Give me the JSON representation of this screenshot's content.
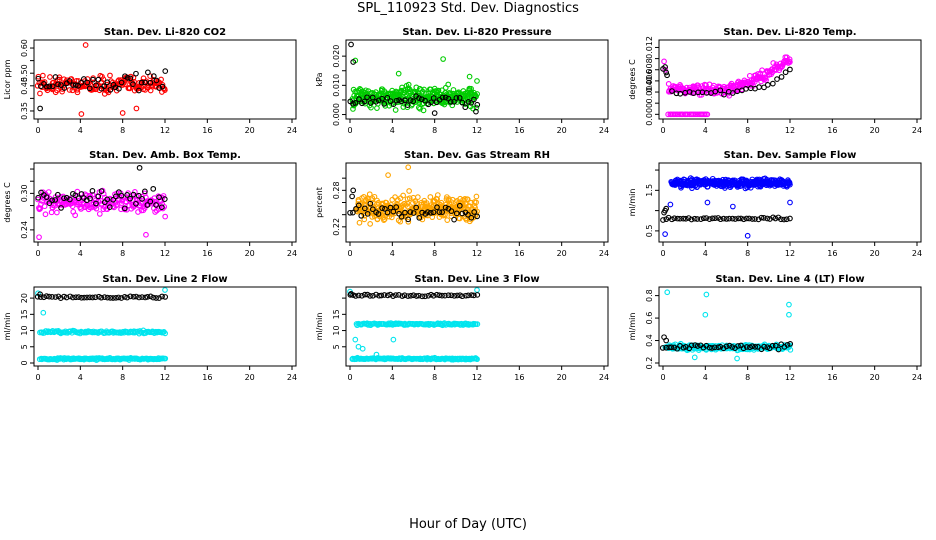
{
  "figure": {
    "title": "SPL_110923  Std. Dev. Diagnostics",
    "xlabel": "Hour of Day (UTC)"
  },
  "colors": {
    "red": "#ff0000",
    "black": "#000000",
    "green": "#00cc00",
    "magenta": "#ff00ff",
    "orange": "#ffa500",
    "blue": "#0000ff",
    "cyan": "#00e5ee"
  },
  "chart_data": [
    {
      "type": "scatter",
      "title": "Stan. Dev. Li-820 CO2",
      "ylabel": "Licor ppm",
      "xlim": [
        0,
        24
      ],
      "xticks": [
        0,
        4,
        8,
        12,
        16,
        20,
        24
      ],
      "ylim": [
        0.33,
        0.62
      ],
      "yticks": [
        0.35,
        0.4,
        0.45,
        0.5,
        0.55,
        0.6
      ],
      "ytick_labels": [
        "0.35",
        "",
        "0.45",
        "0.50",
        "",
        "0.60"
      ],
      "series": [
        {
          "name": "red",
          "color": "red",
          "x_range": [
            0,
            12
          ],
          "n": 170,
          "center": 0.455,
          "spread": 0.045,
          "outliers": [
            [
              4.5,
              0.612
            ],
            [
              4.1,
              0.338
            ],
            [
              8.0,
              0.342
            ],
            [
              9.3,
              0.36
            ]
          ]
        },
        {
          "name": "black",
          "color": "black",
          "x_range": [
            0,
            12
          ],
          "n": 45,
          "center": 0.46,
          "spread": 0.045,
          "outliers": [
            [
              0.2,
              0.36
            ]
          ]
        }
      ]
    },
    {
      "type": "scatter",
      "title": "Stan. Dev. Li-820 Pressure",
      "ylabel": "kPa",
      "xlim": [
        0,
        24
      ],
      "xticks": [
        0,
        4,
        8,
        12,
        16,
        20,
        24
      ],
      "ylim": [
        -0.0005,
        0.0245
      ],
      "yticks": [
        0.0,
        0.005,
        0.01,
        0.015,
        0.02
      ],
      "ytick_labels": [
        "0.000",
        "",
        "0.010",
        "",
        "0.020"
      ],
      "series": [
        {
          "name": "green",
          "color": "green",
          "x_range": [
            0.2,
            12
          ],
          "n": 320,
          "center": 0.006,
          "spread": 0.0045,
          "outliers": [
            [
              0.5,
              0.0185
            ],
            [
              4.6,
              0.014
            ],
            [
              8.8,
              0.019
            ],
            [
              11.3,
              0.013
            ],
            [
              12,
              0.0115
            ]
          ]
        },
        {
          "name": "black",
          "color": "black",
          "x_range": [
            0,
            12
          ],
          "n": 45,
          "center": 0.0045,
          "spread": 0.002,
          "outliers": [
            [
              0.1,
              0.024
            ],
            [
              0.3,
              0.018
            ],
            [
              8.0,
              0.0005
            ],
            [
              11.9,
              0.001
            ]
          ]
        }
      ]
    },
    {
      "type": "scatter",
      "title": "Stan. Dev. Li-820 Temp.",
      "ylabel": "degrees C",
      "xlim": [
        0,
        24
      ],
      "xticks": [
        0,
        4,
        8,
        12,
        16,
        20,
        24
      ],
      "ylim": [
        -0.0003,
        0.0128
      ],
      "yticks": [
        0.0,
        0.002,
        0.004,
        0.006,
        0.008,
        0.01,
        0.012
      ],
      "ytick_labels": [
        "0.000",
        "",
        "0.004",
        "0.006",
        "0.008",
        "",
        "0.012"
      ],
      "series": [
        {
          "name": "magenta-low",
          "color": "magenta",
          "x_range": [
            0.5,
            4.2
          ],
          "n": 25,
          "center": 0.0,
          "spread": 0.0,
          "outliers": []
        },
        {
          "name": "magenta-main",
          "color": "magenta",
          "x_range": [
            0.5,
            12
          ],
          "n": 200,
          "trend": [
            [
              0.5,
              0.0045
            ],
            [
              6,
              0.0043
            ],
            [
              8,
              0.0055
            ],
            [
              10,
              0.0075
            ],
            [
              11.5,
              0.0095
            ]
          ],
          "spread": 0.0012,
          "outliers": [
            [
              0.1,
              0.0095
            ],
            [
              0.2,
              0.008
            ]
          ]
        },
        {
          "name": "black",
          "color": "black",
          "x_range": [
            0,
            12
          ],
          "n": 30,
          "trend": [
            [
              0,
              0.008
            ],
            [
              1,
              0.004
            ],
            [
              6,
              0.004
            ],
            [
              10,
              0.005
            ],
            [
              12,
              0.008
            ]
          ],
          "spread": 0.0006,
          "outliers": [
            [
              0.2,
              0.0085
            ],
            [
              0.3,
              0.0075
            ]
          ]
        }
      ]
    },
    {
      "type": "scatter",
      "title": "Stan. Dev. Amb. Box Temp.",
      "ylabel": "degrees C",
      "xlim": [
        0,
        24
      ],
      "xticks": [
        0,
        4,
        8,
        12,
        16,
        20,
        24
      ],
      "ylim": [
        0.225,
        0.345
      ],
      "yticks": [
        0.24,
        0.26,
        0.28,
        0.3,
        0.32,
        0.34
      ],
      "ytick_labels": [
        "0.24",
        "",
        "",
        "0.30",
        "",
        ""
      ],
      "series": [
        {
          "name": "magenta",
          "color": "magenta",
          "x_range": [
            0,
            12
          ],
          "n": 200,
          "center": 0.285,
          "spread": 0.02,
          "outliers": [
            [
              0.1,
              0.228
            ],
            [
              10.2,
              0.232
            ]
          ]
        },
        {
          "name": "black",
          "color": "black",
          "x_range": [
            0,
            12
          ],
          "n": 45,
          "center": 0.29,
          "spread": 0.018,
          "outliers": [
            [
              9.6,
              0.342
            ]
          ]
        }
      ]
    },
    {
      "type": "scatter",
      "title": "Stan. Dev. Gas Stream RH",
      "ylabel": "percent",
      "xlim": [
        0,
        24
      ],
      "xticks": [
        0,
        4,
        8,
        12,
        16,
        20,
        24
      ],
      "ylim": [
        0.2,
        0.32
      ],
      "yticks": [
        0.22,
        0.24,
        0.26,
        0.28,
        0.3
      ],
      "ytick_labels": [
        "0.22",
        "",
        "",
        "0.28",
        ""
      ],
      "series": [
        {
          "name": "orange",
          "color": "orange",
          "x_range": [
            0.6,
            12
          ],
          "n": 340,
          "center": 0.25,
          "spread": 0.025,
          "outliers": [
            [
              5.5,
              0.318
            ],
            [
              3.6,
              0.305
            ]
          ]
        },
        {
          "name": "black",
          "color": "black",
          "x_range": [
            0,
            12
          ],
          "n": 45,
          "center": 0.245,
          "spread": 0.015,
          "outliers": [
            [
              0.3,
              0.28
            ],
            [
              0.2,
              0.27
            ]
          ]
        }
      ]
    },
    {
      "type": "scatter",
      "title": "Stan. Dev. Sample Flow",
      "ylabel": "ml/min",
      "xlim": [
        0,
        24
      ],
      "xticks": [
        0,
        4,
        8,
        12,
        16,
        20,
        24
      ],
      "ylim": [
        0.3,
        2.1
      ],
      "yticks": [
        0.5,
        1.0,
        1.5,
        2.0
      ],
      "ytick_labels": [
        "0.5",
        "",
        "1.5",
        ""
      ],
      "series": [
        {
          "name": "blue",
          "color": "blue",
          "x_range": [
            0.8,
            12
          ],
          "n": 320,
          "center": 1.68,
          "spread": 0.13,
          "outliers": [
            [
              0.2,
              0.42
            ],
            [
              8.0,
              0.38
            ],
            [
              0.7,
              1.15
            ],
            [
              4.2,
              1.2
            ],
            [
              6.6,
              1.1
            ],
            [
              12,
              1.2
            ]
          ]
        },
        {
          "name": "black",
          "color": "black",
          "x_range": [
            0,
            12
          ],
          "n": 45,
          "center": 0.8,
          "spread": 0.04,
          "outliers": [
            [
              0.2,
              1.0
            ],
            [
              0.1,
              0.95
            ],
            [
              0.3,
              1.05
            ]
          ]
        }
      ]
    },
    {
      "type": "scatter",
      "title": "Stan. Dev. Line 2 Flow",
      "ylabel": "ml/min",
      "xlim": [
        0,
        24
      ],
      "xticks": [
        0,
        4,
        8,
        12,
        16,
        20,
        24
      ],
      "ylim": [
        0,
        22.5
      ],
      "yticks": [
        0,
        5,
        10,
        15,
        20
      ],
      "ytick_labels": [
        "0",
        "5",
        "10",
        "15",
        "20"
      ],
      "series": [
        {
          "name": "cyan-high",
          "color": "cyan",
          "x_range": [
            0.2,
            12
          ],
          "n": 120,
          "center": 9.5,
          "spread": 0.5,
          "outliers": [
            [
              0.5,
              15.5
            ],
            [
              12,
              22.5
            ],
            [
              0,
              21.5
            ]
          ]
        },
        {
          "name": "cyan-low",
          "color": "cyan",
          "x_range": [
            0.2,
            12
          ],
          "n": 150,
          "center": 1.3,
          "spread": 0.35,
          "outliers": []
        },
        {
          "name": "black",
          "color": "black",
          "x_range": [
            0,
            12
          ],
          "n": 45,
          "center": 20.3,
          "spread": 0.35,
          "outliers": [
            [
              0.2,
              21.2
            ]
          ]
        }
      ]
    },
    {
      "type": "scatter",
      "title": "Stan. Dev. Line 3 Flow",
      "ylabel": "ml/min",
      "xlim": [
        0,
        24
      ],
      "xticks": [
        0,
        4,
        8,
        12,
        16,
        20,
        24
      ],
      "ylim": [
        0,
        22.5
      ],
      "yticks": [
        5,
        10,
        15,
        20
      ],
      "ytick_labels": [
        "5",
        "10",
        "15",
        ""
      ],
      "series": [
        {
          "name": "cyan-high",
          "color": "cyan",
          "x_range": [
            0.6,
            12
          ],
          "n": 120,
          "center": 12.0,
          "spread": 0.4,
          "outliers": [
            [
              0.5,
              7.2
            ],
            [
              0.8,
              5.0
            ],
            [
              1.2,
              4.4
            ],
            [
              2.5,
              2.6
            ],
            [
              4.1,
              7.2
            ],
            [
              12,
              22.5
            ],
            [
              0,
              22.0
            ]
          ]
        },
        {
          "name": "cyan-low",
          "color": "cyan",
          "x_range": [
            0.2,
            12
          ],
          "n": 150,
          "center": 1.3,
          "spread": 0.35,
          "outliers": []
        },
        {
          "name": "black",
          "color": "black",
          "x_range": [
            0,
            12
          ],
          "n": 45,
          "center": 20.8,
          "spread": 0.35,
          "outliers": [
            [
              0.1,
              21.3
            ]
          ]
        }
      ]
    },
    {
      "type": "scatter",
      "title": "Stan. Dev. Line 4 (LT) Flow",
      "ylabel": "ml/min",
      "xlim": [
        0,
        24
      ],
      "xticks": [
        0,
        4,
        8,
        12,
        16,
        20,
        24
      ],
      "ylim": [
        0.2,
        0.85
      ],
      "yticks": [
        0.2,
        0.4,
        0.6,
        0.8
      ],
      "ytick_labels": [
        "0.2",
        "0.4",
        "0.6",
        "0.8"
      ],
      "series": [
        {
          "name": "cyan",
          "color": "cyan",
          "x_range": [
            0.2,
            12
          ],
          "n": 260,
          "center": 0.34,
          "spread": 0.03,
          "outliers": [
            [
              0.4,
              0.83
            ],
            [
              4.1,
              0.81
            ],
            [
              4.0,
              0.63
            ],
            [
              11.9,
              0.72
            ],
            [
              11.9,
              0.63
            ],
            [
              7.0,
              0.24
            ],
            [
              3.0,
              0.25
            ]
          ]
        },
        {
          "name": "black",
          "color": "black",
          "x_range": [
            0,
            12
          ],
          "n": 45,
          "center": 0.345,
          "spread": 0.025,
          "outliers": [
            [
              0.1,
              0.43
            ],
            [
              0.3,
              0.4
            ]
          ]
        }
      ]
    }
  ]
}
